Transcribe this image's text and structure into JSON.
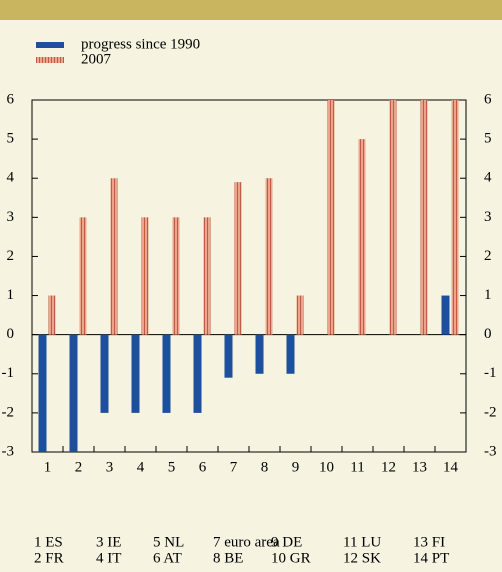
{
  "chart_data": {
    "type": "bar",
    "categories": [
      "1",
      "2",
      "3",
      "4",
      "5",
      "6",
      "7",
      "8",
      "9",
      "10",
      "11",
      "12",
      "13",
      "14"
    ],
    "series": [
      {
        "name": "progress since 1990",
        "color": "#1c4f9c",
        "values": [
          -3,
          -3,
          -2,
          -2,
          -2,
          -2,
          -1.1,
          -1,
          -1,
          0,
          0,
          0,
          0,
          1
        ]
      },
      {
        "name": "2007",
        "color": "#e9a58e",
        "stripe": "#c25a44",
        "values": [
          1,
          3,
          4,
          3,
          3,
          3,
          3.9,
          4,
          1,
          6,
          5,
          6,
          6,
          6
        ]
      }
    ],
    "ylim": [
      -3,
      6
    ],
    "yticks": [
      -3,
      -2,
      -1,
      0,
      1,
      2,
      3,
      4,
      5,
      6
    ],
    "legend": "top-left",
    "key": [
      "1 ES",
      "2 FR",
      "3 IE",
      "4 IT",
      "5 NL",
      "6 AT",
      "7 euro area",
      "8 BE",
      "9 DE",
      "10 GR",
      "11 LU",
      "12 SK",
      "13 FI",
      "14 PT"
    ]
  }
}
